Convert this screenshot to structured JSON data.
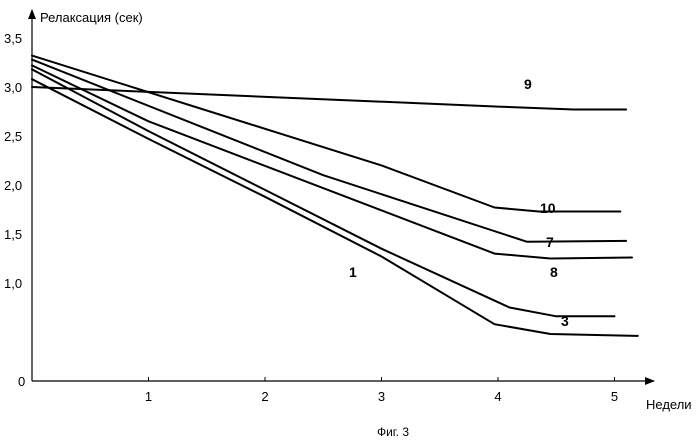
{
  "chart_data": {
    "type": "line",
    "ylabel": "Релаксация (сек)",
    "xlabel": "Недели",
    "caption": "Фиг. 3",
    "x_ticks": [
      {
        "value": 1,
        "label": "1"
      },
      {
        "value": 2,
        "label": "2"
      },
      {
        "value": 3,
        "label": "3"
      },
      {
        "value": 4,
        "label": "4"
      },
      {
        "value": 5,
        "label": "5"
      }
    ],
    "y_ticks": [
      {
        "value": 0,
        "label": "0"
      },
      {
        "value": 1.0,
        "label": "1,0"
      },
      {
        "value": 1.5,
        "label": "1,5"
      },
      {
        "value": 2.0,
        "label": "2,0"
      },
      {
        "value": 2.5,
        "label": "2,5"
      },
      {
        "value": 3.0,
        "label": "3,0"
      },
      {
        "value": 3.5,
        "label": "3,5"
      }
    ],
    "xlim": [
      0,
      5.3
    ],
    "ylim": [
      0,
      3.5
    ],
    "grid": false,
    "series": [
      {
        "name": "9",
        "x": [
          0,
          1,
          4,
          4.65,
          5.1
        ],
        "y": [
          3.0,
          2.95,
          2.8,
          2.77,
          2.77
        ]
      },
      {
        "name": "10",
        "x": [
          0,
          3.0,
          3.97,
          4.35,
          5.05
        ],
        "y": [
          3.32,
          2.2,
          1.77,
          1.73,
          1.73
        ]
      },
      {
        "name": "7",
        "x": [
          0,
          2.5,
          4.25,
          5.1
        ],
        "y": [
          3.28,
          2.1,
          1.42,
          1.43
        ]
      },
      {
        "name": "8",
        "x": [
          0,
          1,
          3.97,
          4.45,
          5.15
        ],
        "y": [
          3.22,
          2.65,
          1.3,
          1.25,
          1.26
        ]
      },
      {
        "name": "1",
        "x": [
          0,
          1,
          2,
          3,
          4.1,
          4.5,
          5.0
        ],
        "y": [
          3.18,
          2.55,
          1.95,
          1.35,
          0.75,
          0.66,
          0.66
        ]
      },
      {
        "name": "3",
        "x": [
          0,
          1,
          2,
          3,
          3.97,
          4.45,
          5.2
        ],
        "y": [
          3.08,
          2.47,
          1.88,
          1.27,
          0.58,
          0.48,
          0.46
        ]
      }
    ]
  }
}
